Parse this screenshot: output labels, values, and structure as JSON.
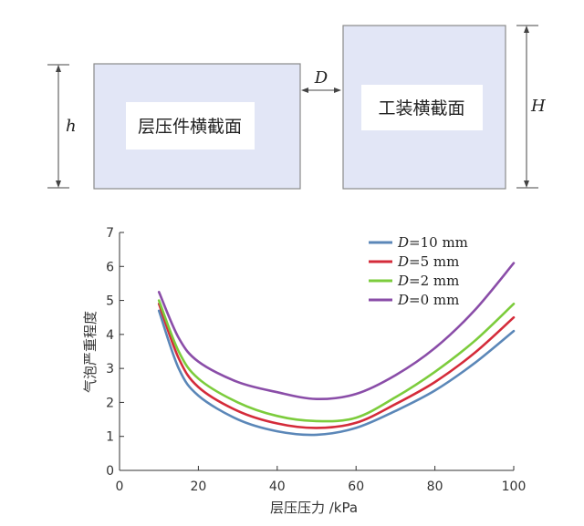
{
  "diagram": {
    "left_box_label": "层压件横截面",
    "right_box_label": "工装横截面",
    "gap_label": "D",
    "left_height_label": "h",
    "right_height_label": "H",
    "box_fill": "#e2e6f6",
    "box_stroke": "#8a8a8a"
  },
  "chart_data": {
    "type": "line",
    "xlabel": "层压压力 /kPa",
    "ylabel": "气泡严重程度",
    "xlim": [
      0,
      100
    ],
    "ylim": [
      0,
      7
    ],
    "xticks": [
      0,
      20,
      40,
      60,
      80,
      100
    ],
    "yticks": [
      0,
      1,
      2,
      3,
      4,
      5,
      6,
      7
    ],
    "grid": false,
    "legend_position": "top-right",
    "series": [
      {
        "name": "D=10 mm",
        "legend_var": "D",
        "legend_rest": "=10 mm",
        "color": "#5b87b8",
        "x": [
          10,
          15,
          20,
          30,
          40,
          50,
          60,
          70,
          80,
          90,
          100
        ],
        "y": [
          4.7,
          3.0,
          2.2,
          1.5,
          1.15,
          1.05,
          1.25,
          1.75,
          2.35,
          3.15,
          4.1
        ]
      },
      {
        "name": "D=5 mm",
        "legend_var": "D",
        "legend_rest": "=5 mm",
        "color": "#d42b3a",
        "x": [
          10,
          15,
          20,
          30,
          40,
          50,
          60,
          70,
          80,
          90,
          100
        ],
        "y": [
          4.9,
          3.3,
          2.45,
          1.75,
          1.38,
          1.25,
          1.4,
          1.95,
          2.6,
          3.45,
          4.5
        ]
      },
      {
        "name": "D=2 mm",
        "legend_var": "D",
        "legend_rest": "=2 mm",
        "color": "#7ccc3c",
        "x": [
          10,
          15,
          20,
          30,
          40,
          50,
          60,
          70,
          80,
          90,
          100
        ],
        "y": [
          5.0,
          3.5,
          2.7,
          2.0,
          1.6,
          1.45,
          1.55,
          2.15,
          2.9,
          3.8,
          4.9
        ]
      },
      {
        "name": "D=0 mm",
        "legend_var": "D",
        "legend_rest": "=0 mm",
        "color": "#8a4da8",
        "x": [
          10,
          15,
          20,
          30,
          40,
          50,
          60,
          70,
          80,
          90,
          100
        ],
        "y": [
          5.25,
          3.9,
          3.2,
          2.6,
          2.3,
          2.1,
          2.25,
          2.8,
          3.6,
          4.7,
          6.1
        ]
      }
    ]
  }
}
